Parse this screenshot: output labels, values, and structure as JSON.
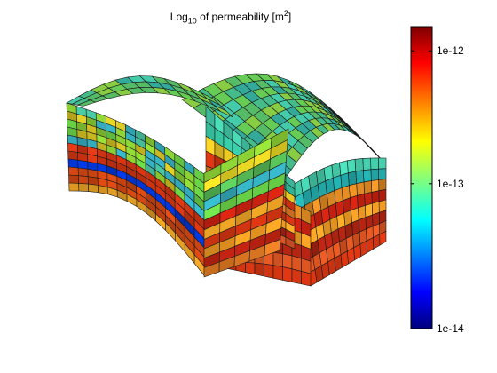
{
  "title": {
    "prefix": "Log",
    "subscript": "10",
    "middle": " of permeability [m",
    "superscript": "2",
    "suffix": "]"
  },
  "colorbar": {
    "colormap": "jet",
    "scale": "log",
    "range": [
      "1e-14",
      "1.5e-12"
    ],
    "ticks": [
      {
        "label": "1e-12",
        "fraction": 0.92
      },
      {
        "label": "1e-13",
        "fraction": 0.48
      },
      {
        "label": "1e-14",
        "fraction": 0.0
      }
    ]
  },
  "model": {
    "description_type": "3D corner-point grid block, folded (anticline) with a cut-away notch",
    "layer_colors_front": [
      "#66cc44",
      "#33bbaa",
      "#ddbb22",
      "#cc3311",
      "#0033cc",
      "#cc4411",
      "#dd9922"
    ],
    "layer_colors_right": [
      "#44ccaa",
      "#22aaaa",
      "#dd8822",
      "#cc2211",
      "#ee9922",
      "#aa2211",
      "#dd5522",
      "#cc3311"
    ],
    "top_color": "#55bb66"
  }
}
